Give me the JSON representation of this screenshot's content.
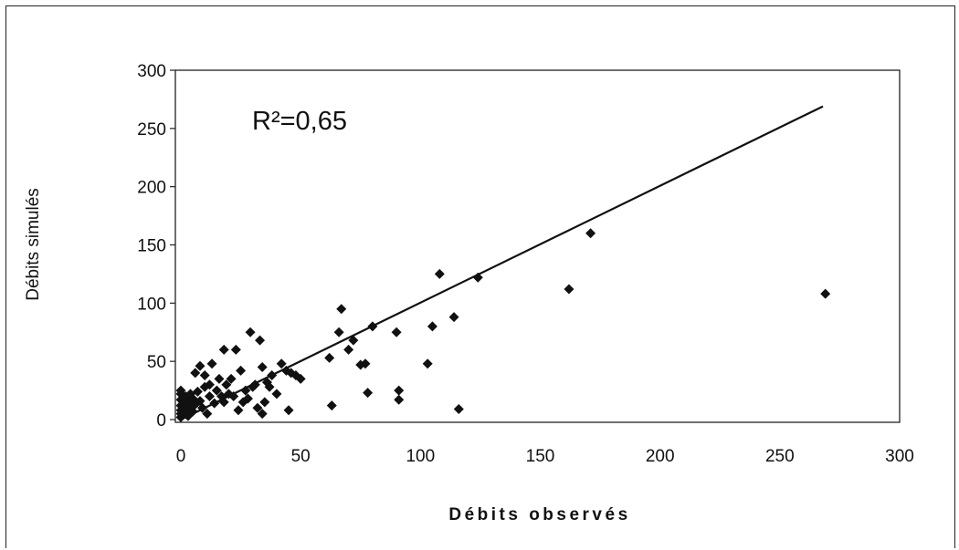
{
  "chart_data": {
    "type": "scatter",
    "xlabel": "Débits observés",
    "ylabel": "Débits simulés",
    "annotation": "R²=0,65",
    "xlim": [
      0,
      300
    ],
    "ylim": [
      0,
      300
    ],
    "x_ticks": [
      "0",
      "50",
      "100",
      "150",
      "200",
      "250",
      "300"
    ],
    "y_ticks": [
      "0",
      "50",
      "100",
      "150",
      "200",
      "250",
      "300"
    ],
    "grid": false,
    "legend": "none",
    "marker": "diamond",
    "colors": {
      "points": "#111111",
      "line": "#111111",
      "axis": "#222222"
    },
    "trend_line": {
      "x": [
        0,
        268
      ],
      "y": [
        0,
        269
      ]
    },
    "points": [
      [
        0,
        2
      ],
      [
        0,
        5
      ],
      [
        0,
        8
      ],
      [
        0,
        12
      ],
      [
        0,
        17
      ],
      [
        0,
        22
      ],
      [
        0,
        25
      ],
      [
        1,
        4
      ],
      [
        1,
        10
      ],
      [
        1,
        14
      ],
      [
        1,
        19
      ],
      [
        2,
        6
      ],
      [
        2,
        12
      ],
      [
        2,
        20
      ],
      [
        3,
        3
      ],
      [
        3,
        9
      ],
      [
        3,
        15
      ],
      [
        4,
        11
      ],
      [
        4,
        22
      ],
      [
        5,
        7
      ],
      [
        5,
        18
      ],
      [
        6,
        13
      ],
      [
        6,
        40
      ],
      [
        7,
        24
      ],
      [
        8,
        16
      ],
      [
        8,
        46
      ],
      [
        9,
        10
      ],
      [
        10,
        38
      ],
      [
        10,
        28
      ],
      [
        11,
        5
      ],
      [
        12,
        20
      ],
      [
        12,
        30
      ],
      [
        13,
        48
      ],
      [
        14,
        14
      ],
      [
        15,
        25
      ],
      [
        16,
        35
      ],
      [
        17,
        20
      ],
      [
        18,
        15
      ],
      [
        18,
        60
      ],
      [
        19,
        30
      ],
      [
        20,
        22
      ],
      [
        21,
        35
      ],
      [
        22,
        20
      ],
      [
        23,
        60
      ],
      [
        24,
        8
      ],
      [
        25,
        42
      ],
      [
        26,
        15
      ],
      [
        27,
        25
      ],
      [
        28,
        18
      ],
      [
        29,
        75
      ],
      [
        30,
        28
      ],
      [
        31,
        30
      ],
      [
        32,
        10
      ],
      [
        33,
        68
      ],
      [
        34,
        5
      ],
      [
        34,
        45
      ],
      [
        35,
        15
      ],
      [
        36,
        32
      ],
      [
        37,
        28
      ],
      [
        38,
        38
      ],
      [
        40,
        22
      ],
      [
        42,
        48
      ],
      [
        44,
        42
      ],
      [
        45,
        8
      ],
      [
        46,
        40
      ],
      [
        48,
        38
      ],
      [
        50,
        35
      ],
      [
        62,
        53
      ],
      [
        63,
        12
      ],
      [
        66,
        75
      ],
      [
        67,
        95
      ],
      [
        70,
        60
      ],
      [
        72,
        68
      ],
      [
        75,
        47
      ],
      [
        77,
        48
      ],
      [
        78,
        23
      ],
      [
        80,
        80
      ],
      [
        90,
        75
      ],
      [
        91,
        17
      ],
      [
        91,
        25
      ],
      [
        103,
        48
      ],
      [
        105,
        80
      ],
      [
        108,
        125
      ],
      [
        114,
        88
      ],
      [
        116,
        9
      ],
      [
        124,
        122
      ],
      [
        162,
        112
      ],
      [
        171,
        160
      ],
      [
        269,
        108
      ]
    ]
  }
}
